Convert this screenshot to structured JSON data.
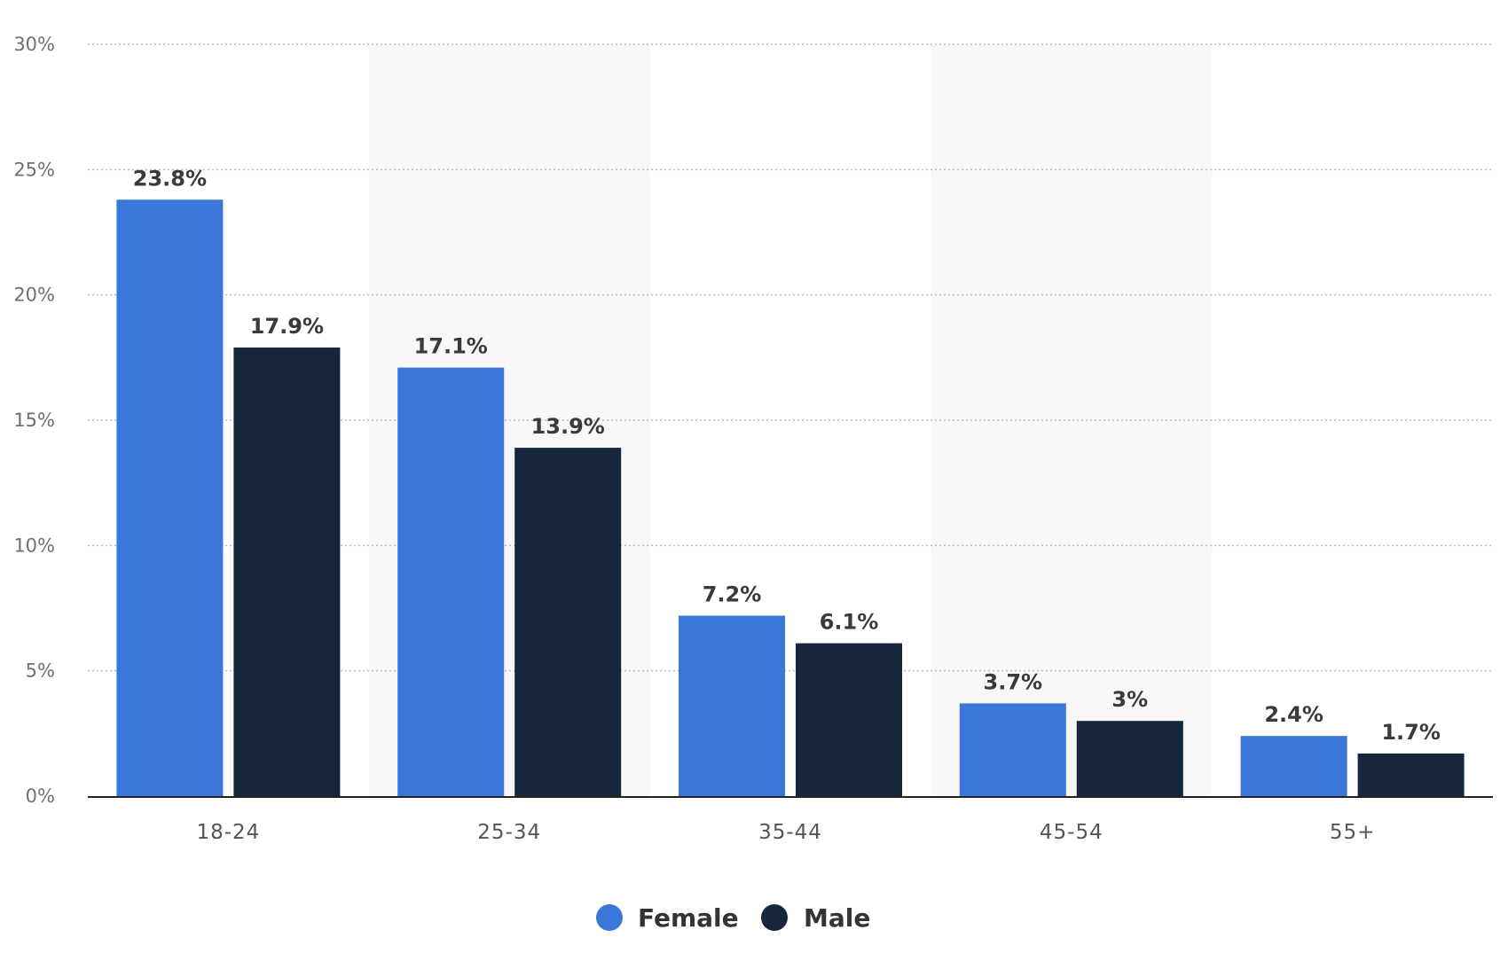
{
  "chart_data": {
    "type": "bar",
    "categories": [
      "18-24",
      "25-34",
      "35-44",
      "45-54",
      "55+"
    ],
    "series": [
      {
        "name": "Female",
        "values": [
          23.8,
          17.1,
          7.2,
          3.7,
          2.4
        ],
        "labels": [
          "23.8%",
          "17.1%",
          "7.2%",
          "3.7%",
          "2.4%"
        ],
        "color": "#3b76d9"
      },
      {
        "name": "Male",
        "values": [
          17.9,
          13.9,
          6.1,
          3,
          1.7
        ],
        "labels": [
          "17.9%",
          "13.9%",
          "6.1%",
          "3%",
          "1.7%"
        ],
        "color": "#16263c"
      }
    ],
    "y_ticks": [
      0,
      5,
      10,
      15,
      20,
      25,
      30
    ],
    "y_tick_labels": [
      "0%",
      "5%",
      "10%",
      "15%",
      "20%",
      "25%",
      "30%"
    ],
    "ylim": [
      0,
      30
    ],
    "grid": true,
    "legend_position": "bottom-center",
    "alternating_band_color": "#f7f7f7"
  }
}
